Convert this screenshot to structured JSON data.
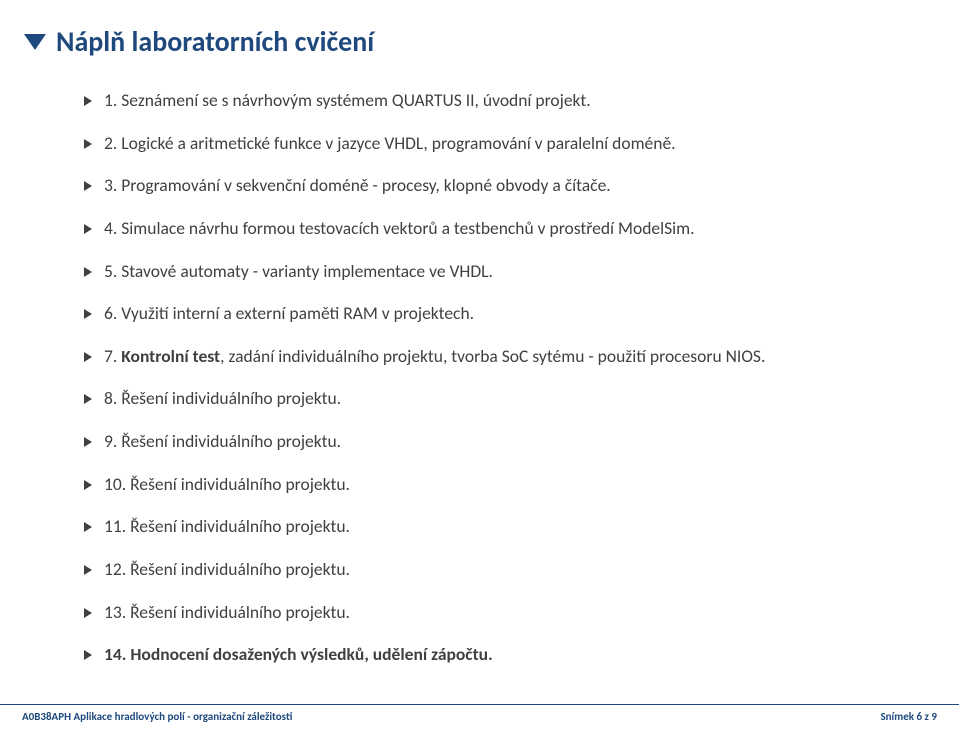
{
  "title": "Náplň laboratorních cvičení",
  "items": [
    {
      "text": "1. Seznámení se s návrhovým systémem QUARTUS II, úvodní projekt."
    },
    {
      "text": "2. Logické a aritmetické funkce v jazyce VHDL, programování v paralelní doméně."
    },
    {
      "text": "3. Programování v sekvenční doméně - procesy, klopné obvody a čítače."
    },
    {
      "text": "4. Simulace návrhu formou testovacích vektorů a testbenchů v prostředí ModelSim."
    },
    {
      "text": "5. Stavové automaty - varianty implementace ve VHDL."
    },
    {
      "text": "6. Využití interní a externí paměti RAM v projektech."
    },
    {
      "prefix": "7. ",
      "bold": "Kontrolní test",
      "suffix": ", zadání individuálního projektu, tvorba SoC sytému - použití procesoru NIOS."
    },
    {
      "text": "8. Řešení individuálního projektu."
    },
    {
      "text": "9. Řešení individuálního projektu."
    },
    {
      "text": "10. Řešení individuálního projektu."
    },
    {
      "text": "11. Řešení individuálního projektu."
    },
    {
      "text": "12. Řešení individuálního projektu."
    },
    {
      "text": "13. Řešení individuálního projektu."
    },
    {
      "bold_full": "14. Hodnocení dosažených výsledků, udělení zápočtu."
    }
  ],
  "footer": {
    "left": "A0B38APH Aplikace hradlových polí - organizační záležitosti",
    "right": "Snímek 6 z 9"
  },
  "colors": {
    "title": "#1f497d",
    "text": "#404040",
    "footer": "#1f497d",
    "bg": "#ffffff"
  }
}
